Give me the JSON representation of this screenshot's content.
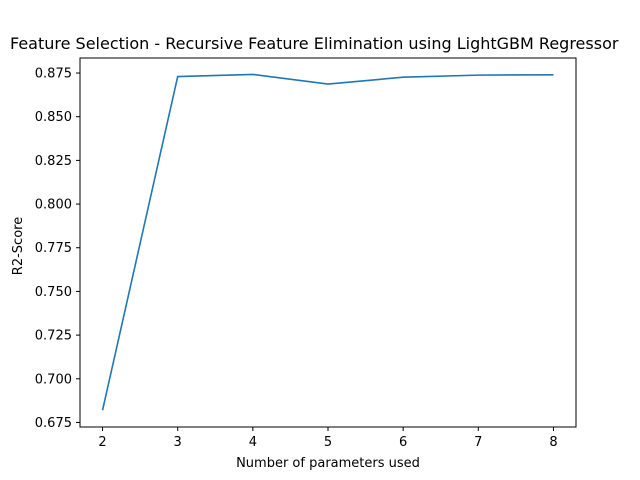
{
  "chart_data": {
    "type": "line",
    "title": "Feature Selection - Recursive Feature Elimination using LightGBM Regressor",
    "xlabel": "Number of parameters used",
    "ylabel": "R2-Score",
    "x": [
      2,
      3,
      4,
      5,
      6,
      7,
      8
    ],
    "series": [
      {
        "values": [
          0.682,
          0.873,
          0.8742,
          0.8687,
          0.8726,
          0.8738,
          0.874
        ]
      }
    ],
    "xlim": [
      1.7,
      8.3
    ],
    "ylim": [
      0.6724,
      0.8836
    ],
    "xticks": [
      2,
      3,
      4,
      5,
      6,
      7,
      8
    ],
    "xtick_labels": [
      "2",
      "3",
      "4",
      "5",
      "6",
      "7",
      "8"
    ],
    "yticks": [
      0.675,
      0.7,
      0.725,
      0.75,
      0.775,
      0.8,
      0.825,
      0.85,
      0.875
    ],
    "ytick_labels": [
      "0.675",
      "0.700",
      "0.725",
      "0.750",
      "0.775",
      "0.800",
      "0.825",
      "0.850",
      "0.875"
    ],
    "grid": false,
    "line_color": "#1f77b4"
  }
}
